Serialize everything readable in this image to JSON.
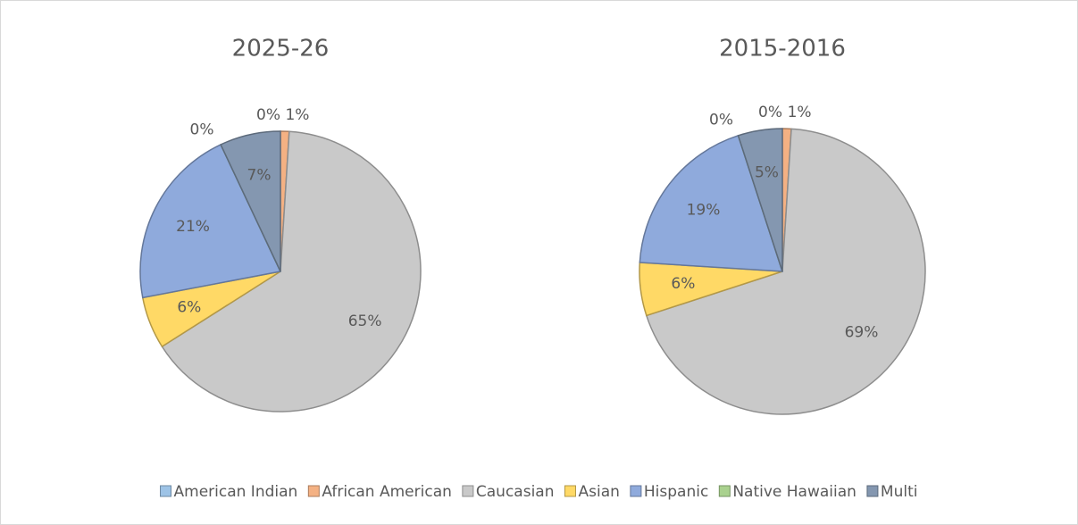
{
  "chart_data": [
    {
      "type": "pie",
      "title": "2025-26",
      "categories": [
        "American Indian",
        "African American",
        "Caucasian",
        "Asian",
        "Hispanic",
        "Native Hawaiian",
        "Multi"
      ],
      "values": [
        0,
        1,
        65,
        6,
        21,
        0,
        7
      ],
      "value_labels": [
        "0%",
        "1%",
        "65%",
        "6%",
        "21%",
        "0%",
        "7%"
      ],
      "colors": [
        "#9dc3e6",
        "#f4b183",
        "#c9c9c9",
        "#ffd966",
        "#8faadc",
        "#a9d18e",
        "#8497b0"
      ],
      "legend": "bottom"
    },
    {
      "type": "pie",
      "title": "2015-2016",
      "categories": [
        "American Indian",
        "African American",
        "Caucasian",
        "Asian",
        "Hispanic",
        "Native Hawaiian",
        "Multi"
      ],
      "values": [
        0,
        1,
        69,
        6,
        19,
        0,
        5
      ],
      "value_labels": [
        "0%",
        "1%",
        "69%",
        "6%",
        "19%",
        "0%",
        "5%"
      ],
      "colors": [
        "#9dc3e6",
        "#f4b183",
        "#c9c9c9",
        "#ffd966",
        "#8faadc",
        "#a9d18e",
        "#8497b0"
      ]
    }
  ]
}
